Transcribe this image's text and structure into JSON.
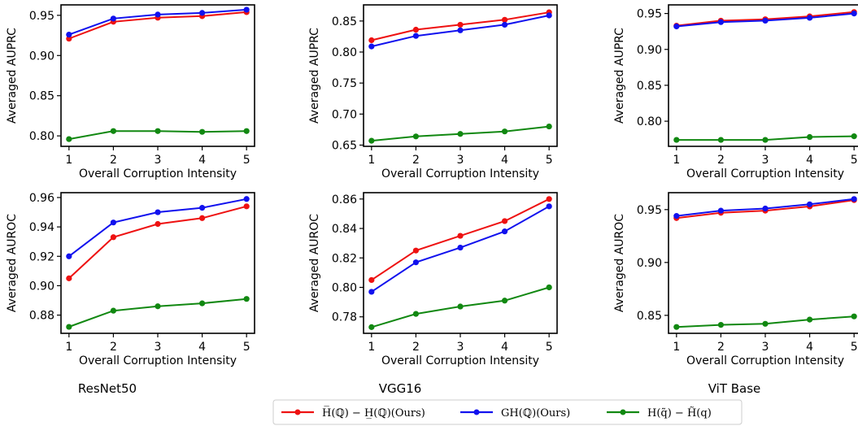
{
  "colors": {
    "red": "#ee1111",
    "blue": "#1111ee",
    "green": "#118811"
  },
  "column_titles": [
    "ResNet50",
    "VGG16",
    "ViT Base"
  ],
  "legend": [
    {
      "label": "H̅(ℚ) − H̲(ℚ)(Ours)",
      "color": "#ee1111"
    },
    {
      "label": "GH(ℚ)(Ours)",
      "color": "#1111ee"
    },
    {
      "label": "H(q̃) − H̃(q)",
      "color": "#118811"
    }
  ],
  "chart_data": [
    {
      "type": "line",
      "model": "ResNet50",
      "metric": "AUPRC",
      "x": [
        1,
        2,
        3,
        4,
        5
      ],
      "xticks": [
        "1",
        "2",
        "3",
        "4",
        "5"
      ],
      "xlabel": "Overall Corruption Intensity",
      "ylabel": "Averaged AUPRC",
      "ylim": [
        0.787,
        0.963
      ],
      "yticks": [
        "0.80",
        "0.85",
        "0.90",
        "0.95"
      ],
      "series": [
        {
          "name": "H̅(ℚ) − H̲(ℚ)(Ours)",
          "color": "#ee1111",
          "values": [
            0.921,
            0.942,
            0.947,
            0.949,
            0.954
          ]
        },
        {
          "name": "GH(ℚ)(Ours)",
          "color": "#1111ee",
          "values": [
            0.926,
            0.946,
            0.951,
            0.953,
            0.957
          ]
        },
        {
          "name": "H(q̃) − H̃(q)",
          "color": "#118811",
          "values": [
            0.796,
            0.806,
            0.806,
            0.805,
            0.806
          ]
        }
      ]
    },
    {
      "type": "line",
      "model": "VGG16",
      "metric": "AUPRC",
      "x": [
        1,
        2,
        3,
        4,
        5
      ],
      "xticks": [
        "1",
        "2",
        "3",
        "4",
        "5"
      ],
      "xlabel": "Overall Corruption Intensity",
      "ylabel": "Averaged AUPRC",
      "ylim": [
        0.648,
        0.876
      ],
      "yticks": [
        "0.65",
        "0.70",
        "0.75",
        "0.80",
        "0.85"
      ],
      "series": [
        {
          "name": "H̅(ℚ) − H̲(ℚ)(Ours)",
          "color": "#ee1111",
          "values": [
            0.819,
            0.836,
            0.844,
            0.852,
            0.864
          ]
        },
        {
          "name": "GH(ℚ)(Ours)",
          "color": "#1111ee",
          "values": [
            0.809,
            0.826,
            0.835,
            0.844,
            0.859
          ]
        },
        {
          "name": "H(q̃) − H̃(q)",
          "color": "#118811",
          "values": [
            0.657,
            0.664,
            0.668,
            0.672,
            0.68
          ]
        }
      ]
    },
    {
      "type": "line",
      "model": "ViT Base",
      "metric": "AUPRC",
      "x": [
        1,
        2,
        3,
        4,
        5
      ],
      "xticks": [
        "1",
        "2",
        "3",
        "4",
        "5"
      ],
      "xlabel": "Overall Corruption Intensity",
      "ylabel": "Averaged AUPRC",
      "ylim": [
        0.765,
        0.962
      ],
      "yticks": [
        "0.80",
        "0.85",
        "0.90",
        "0.95"
      ],
      "series": [
        {
          "name": "H̅(ℚ) − H̲(ℚ)(Ours)",
          "color": "#ee1111",
          "values": [
            0.933,
            0.94,
            0.942,
            0.946,
            0.952
          ]
        },
        {
          "name": "GH(ℚ)(Ours)",
          "color": "#1111ee",
          "values": [
            0.932,
            0.938,
            0.94,
            0.944,
            0.95
          ]
        },
        {
          "name": "H(q̃) − H̃(q)",
          "color": "#118811",
          "values": [
            0.774,
            0.774,
            0.774,
            0.778,
            0.779
          ]
        }
      ]
    },
    {
      "type": "line",
      "model": "ResNet50",
      "metric": "AUROC",
      "x": [
        1,
        2,
        3,
        4,
        5
      ],
      "xticks": [
        "1",
        "2",
        "3",
        "4",
        "5"
      ],
      "xlabel": "Overall Corruption Intensity",
      "ylabel": "Averaged AUROC",
      "ylim": [
        0.8676,
        0.9633
      ],
      "yticks": [
        "0.88",
        "0.90",
        "0.92",
        "0.94",
        "0.96"
      ],
      "series": [
        {
          "name": "H̅(ℚ) − H̲(ℚ)(Ours)",
          "color": "#ee1111",
          "values": [
            0.905,
            0.933,
            0.942,
            0.946,
            0.954
          ]
        },
        {
          "name": "GH(ℚ)(Ours)",
          "color": "#1111ee",
          "values": [
            0.92,
            0.943,
            0.95,
            0.953,
            0.959
          ]
        },
        {
          "name": "H(q̃) − H̃(q)",
          "color": "#118811",
          "values": [
            0.872,
            0.883,
            0.886,
            0.888,
            0.891
          ]
        }
      ]
    },
    {
      "type": "line",
      "model": "VGG16",
      "metric": "AUROC",
      "x": [
        1,
        2,
        3,
        4,
        5
      ],
      "xticks": [
        "1",
        "2",
        "3",
        "4",
        "5"
      ],
      "xlabel": "Overall Corruption Intensity",
      "ylabel": "Averaged AUROC",
      "ylim": [
        0.7688,
        0.8643
      ],
      "yticks": [
        "0.78",
        "0.80",
        "0.82",
        "0.84",
        "0.86"
      ],
      "series": [
        {
          "name": "H̅(ℚ) − H̲(ℚ)(Ours)",
          "color": "#ee1111",
          "values": [
            0.805,
            0.825,
            0.835,
            0.845,
            0.86
          ]
        },
        {
          "name": "GH(ℚ)(Ours)",
          "color": "#1111ee",
          "values": [
            0.797,
            0.817,
            0.827,
            0.838,
            0.855
          ]
        },
        {
          "name": "H(q̃) − H̃(q)",
          "color": "#118811",
          "values": [
            0.773,
            0.782,
            0.787,
            0.791,
            0.8
          ]
        }
      ]
    },
    {
      "type": "line",
      "model": "ViT Base",
      "metric": "AUROC",
      "x": [
        1,
        2,
        3,
        4,
        5
      ],
      "xticks": [
        "1",
        "2",
        "3",
        "4",
        "5"
      ],
      "xlabel": "Overall Corruption Intensity",
      "ylabel": "Averaged AUROC",
      "ylim": [
        0.833,
        0.966
      ],
      "yticks": [
        "0.85",
        "0.90",
        "0.95"
      ],
      "series": [
        {
          "name": "H̅(ℚ) − H̲(ℚ)(Ours)",
          "color": "#ee1111",
          "values": [
            0.942,
            0.947,
            0.949,
            0.953,
            0.959
          ]
        },
        {
          "name": "GH(ℚ)(Ours)",
          "color": "#1111ee",
          "values": [
            0.944,
            0.949,
            0.951,
            0.955,
            0.96
          ]
        },
        {
          "name": "H(q̃) − H̃(q)",
          "color": "#118811",
          "values": [
            0.839,
            0.841,
            0.842,
            0.846,
            0.849
          ]
        }
      ]
    }
  ]
}
